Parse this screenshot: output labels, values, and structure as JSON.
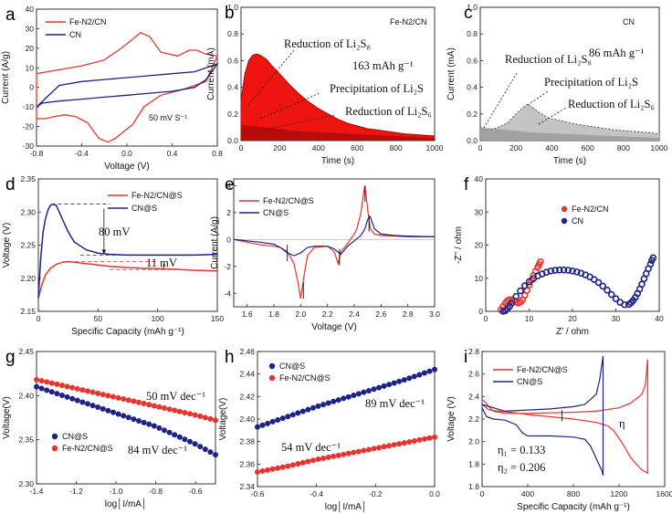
{
  "chart_data": [
    {
      "panel": "a",
      "type": "line",
      "xlabel": "Voltage (V)",
      "ylabel": "Current (A/g)",
      "xlim": [
        -0.8,
        0.8
      ],
      "ylim": [
        -30,
        40
      ],
      "xticks": [
        "-0.8",
        "-0.4",
        "0.0",
        "0.4",
        "0.8"
      ],
      "yticks": [
        "-30",
        "-20",
        "-10",
        "0",
        "10",
        "20",
        "30",
        "40"
      ],
      "series": [
        {
          "name": "Fe-N2/CN",
          "color": "#e8342e",
          "upper": [
            [
              -0.8,
              7
            ],
            [
              -0.6,
              9
            ],
            [
              -0.4,
              11
            ],
            [
              -0.2,
              14
            ],
            [
              -0.05,
              20
            ],
            [
              0.08,
              26
            ],
            [
              0.12,
              28
            ],
            [
              0.2,
              26
            ],
            [
              0.3,
              18
            ],
            [
              0.45,
              16
            ],
            [
              0.55,
              19
            ],
            [
              0.62,
              19
            ],
            [
              0.7,
              17
            ],
            [
              0.8,
              16
            ]
          ],
          "lower": [
            [
              0.8,
              16
            ],
            [
              0.7,
              3
            ],
            [
              0.5,
              -1
            ],
            [
              0.3,
              -4
            ],
            [
              0.15,
              -10
            ],
            [
              0.05,
              -19
            ],
            [
              -0.1,
              -26
            ],
            [
              -0.17,
              -28
            ],
            [
              -0.25,
              -26
            ],
            [
              -0.35,
              -18
            ],
            [
              -0.45,
              -15
            ],
            [
              -0.55,
              -14
            ],
            [
              -0.65,
              -15
            ],
            [
              -0.72,
              -16
            ],
            [
              -0.8,
              -16
            ],
            [
              -0.8,
              7
            ]
          ]
        },
        {
          "name": "CN",
          "color": "#1c2388",
          "upper": [
            [
              -0.8,
              -10
            ],
            [
              -0.6,
              1
            ],
            [
              -0.4,
              3
            ],
            [
              -0.2,
              4
            ],
            [
              0.0,
              5
            ],
            [
              0.2,
              6
            ],
            [
              0.4,
              7
            ],
            [
              0.6,
              8
            ],
            [
              0.7,
              10
            ],
            [
              0.8,
              12
            ]
          ],
          "lower": [
            [
              0.8,
              12
            ],
            [
              0.7,
              4
            ],
            [
              0.6,
              0
            ],
            [
              0.4,
              -2
            ],
            [
              0.2,
              -3
            ],
            [
              0.0,
              -4
            ],
            [
              -0.2,
              -5
            ],
            [
              -0.4,
              -6
            ],
            [
              -0.6,
              -7
            ],
            [
              -0.75,
              -8
            ],
            [
              -0.8,
              -10
            ]
          ]
        }
      ],
      "annotations": [
        "50 mV S⁻¹"
      ]
    },
    {
      "panel": "b",
      "type": "area",
      "xlabel": "Time (s)",
      "ylabel": "Current (mA)",
      "xlim": [
        0,
        1000
      ],
      "ylim": [
        0,
        1.0
      ],
      "xticks": [
        "0",
        "200",
        "400",
        "600",
        "800",
        "1000"
      ],
      "yticks": [
        "0.0",
        "0.2",
        "0.4",
        "0.6",
        "0.8",
        "1.0"
      ],
      "legend": "Fe-N2/CN",
      "series": [
        {
          "name": "Fe-N2/CN",
          "color": "#e8120c",
          "x": [
            0,
            20,
            40,
            60,
            80,
            100,
            130,
            160,
            200,
            250,
            300,
            350,
            400,
            450,
            500,
            550,
            600,
            650,
            700,
            750,
            800,
            850,
            900,
            950,
            1000
          ],
          "y": [
            0.3,
            0.5,
            0.6,
            0.64,
            0.65,
            0.64,
            0.61,
            0.56,
            0.5,
            0.42,
            0.35,
            0.29,
            0.24,
            0.2,
            0.16,
            0.13,
            0.11,
            0.09,
            0.08,
            0.07,
            0.06,
            0.05,
            0.045,
            0.04,
            0.035
          ]
        }
      ],
      "annotations": [
        "Reduction of Li₂S₈",
        "163 mAh g⁻¹",
        "Precipitation of Li₂S",
        "Reduction of Li₂S₆"
      ]
    },
    {
      "panel": "c",
      "type": "area",
      "xlabel": "Time (s)",
      "ylabel": "Current (mA)",
      "xlim": [
        0,
        1000
      ],
      "ylim": [
        0,
        1.0
      ],
      "xticks": [
        "0",
        "200",
        "400",
        "600",
        "800",
        "1000"
      ],
      "yticks": [
        "0.0",
        "0.2",
        "0.4",
        "0.6",
        "0.8",
        "1.0"
      ],
      "legend": "CN",
      "series": [
        {
          "name": "CN",
          "color": "#8c8c8c",
          "x": [
            0,
            30,
            80,
            150,
            200,
            240,
            260,
            280,
            320,
            380,
            450,
            550,
            650,
            750,
            850,
            950,
            1000
          ],
          "y": [
            0.1,
            0.08,
            0.09,
            0.13,
            0.2,
            0.25,
            0.27,
            0.26,
            0.22,
            0.17,
            0.15,
            0.12,
            0.1,
            0.08,
            0.07,
            0.06,
            0.05
          ]
        }
      ],
      "annotations": [
        "Reduction of Li₂S₈",
        "86 mAh g⁻¹",
        "Precipitation of Li₂S",
        "Reduction of Li₂S₆"
      ]
    },
    {
      "panel": "d",
      "type": "line",
      "xlabel": "Specific Capacity (mAh g⁻¹)",
      "ylabel": "Voltage (V)",
      "xlim": [
        0,
        150
      ],
      "ylim": [
        2.15,
        2.35
      ],
      "xticks": [
        "0",
        "50",
        "100",
        "150"
      ],
      "yticks": [
        "2.15",
        "2.20",
        "2.25",
        "2.30",
        "2.35"
      ],
      "series": [
        {
          "name": "Fe-N2/CN@S",
          "color": "#e8342e",
          "x": [
            0,
            3,
            6,
            10,
            15,
            20,
            25,
            30,
            40,
            50,
            60,
            75,
            90,
            110,
            130,
            150
          ],
          "y": [
            2.17,
            2.19,
            2.205,
            2.215,
            2.221,
            2.224,
            2.225,
            2.224,
            2.222,
            2.22,
            2.218,
            2.216,
            2.215,
            2.214,
            2.212,
            2.211
          ]
        },
        {
          "name": "CN@S",
          "color": "#1c2388",
          "x": [
            0,
            2,
            4,
            6,
            8,
            10,
            12,
            15,
            20,
            25,
            30,
            40,
            50,
            60,
            75,
            90,
            110,
            130,
            150
          ],
          "y": [
            2.17,
            2.23,
            2.27,
            2.29,
            2.303,
            2.31,
            2.312,
            2.31,
            2.29,
            2.27,
            2.255,
            2.243,
            2.238,
            2.236,
            2.235,
            2.235,
            2.235,
            2.235,
            2.236
          ]
        }
      ],
      "annotations": [
        "80 mV",
        "11 mV"
      ]
    },
    {
      "panel": "e",
      "type": "line",
      "xlabel": "Voltage (V)",
      "ylabel": "Current (A/g)",
      "xlim": [
        1.5,
        3.0
      ],
      "ylim": [
        -5,
        4.5
      ],
      "xticks": [
        "1.6",
        "1.8",
        "2.0",
        "2.2",
        "2.4",
        "2.6",
        "2.8",
        "3.0"
      ],
      "yticks": [
        "-4",
        "-2",
        "0",
        "2",
        "4"
      ],
      "series": [
        {
          "name": "Fe-N2/CN@S",
          "color": "#e8342e",
          "x": [
            1.5,
            1.6,
            1.7,
            1.8,
            1.85,
            1.9,
            1.95,
            1.98,
            2.0,
            2.02,
            2.05,
            2.1,
            2.2,
            2.25,
            2.28,
            2.3,
            2.35,
            2.4,
            2.42,
            2.45,
            2.47,
            2.48,
            2.5,
            2.52,
            2.55,
            2.6,
            2.7,
            2.8,
            3.0
          ],
          "y": [
            0,
            -0.2,
            -0.4,
            -0.5,
            -0.6,
            -0.9,
            -1.8,
            -3.2,
            -4.4,
            -3.0,
            -1.2,
            -0.6,
            -0.5,
            -0.9,
            -1.8,
            -0.9,
            -0.3,
            0.4,
            0.8,
            2.0,
            3.5,
            4.0,
            2.2,
            0.8,
            0.4,
            0.3,
            0.25,
            0.2,
            0.2
          ]
        },
        {
          "name": "CN@S",
          "color": "#1c2388",
          "x": [
            1.5,
            1.6,
            1.7,
            1.8,
            1.85,
            1.9,
            1.95,
            2.0,
            2.05,
            2.1,
            2.2,
            2.25,
            2.3,
            2.35,
            2.4,
            2.45,
            2.48,
            2.5,
            2.52,
            2.55,
            2.6,
            2.7,
            2.8,
            3.0
          ],
          "y": [
            0,
            -0.1,
            -0.2,
            -0.35,
            -0.6,
            -1.0,
            -1.2,
            -1.0,
            -0.6,
            -0.5,
            -0.5,
            -0.7,
            -1.1,
            -0.5,
            -0.1,
            0.3,
            0.8,
            1.5,
            1.7,
            0.8,
            0.4,
            0.3,
            0.25,
            0.2
          ]
        }
      ]
    },
    {
      "panel": "f",
      "type": "scatter",
      "xlabel": "Z' / ohm",
      "ylabel": "-Z'' / ohm",
      "xlim": [
        0,
        40
      ],
      "ylim": [
        0,
        40
      ],
      "xticks": [
        "0",
        "10",
        "20",
        "30",
        "40"
      ],
      "yticks": [
        "0",
        "10",
        "20",
        "30",
        "40"
      ],
      "series": [
        {
          "name": "Fe-N2/CN",
          "color": "#e8342e",
          "x": [
            3.5,
            4,
            4.5,
            5,
            5.5,
            6,
            6.5,
            7,
            7.5,
            8,
            8.5,
            9,
            9.5,
            10,
            10.5,
            11,
            11.5,
            12,
            12.3,
            12.6
          ],
          "y": [
            0.5,
            1.5,
            2.5,
            3.2,
            3.5,
            3.5,
            3.2,
            2.8,
            2.5,
            2.8,
            3.5,
            4.8,
            6.3,
            7.9,
            9.4,
            10.8,
            12.1,
            13.3,
            14.2,
            15.0
          ]
        },
        {
          "name": "CN",
          "color": "#1c2388",
          "x": [
            4,
            4.5,
            5,
            5.5,
            6,
            7,
            8,
            9,
            10,
            11,
            12,
            13,
            14,
            15,
            16,
            17,
            18,
            19,
            20,
            21,
            22,
            23,
            24,
            25,
            26,
            27,
            28,
            29,
            30,
            31,
            32,
            33,
            33.5,
            34,
            34.5,
            35,
            35.5,
            36,
            36.5,
            37,
            37.5,
            38,
            38.3,
            38.6
          ],
          "y": [
            0,
            0.2,
            0.8,
            1.5,
            2.5,
            4.5,
            6.2,
            7.7,
            8.9,
            9.9,
            10.7,
            11.3,
            11.8,
            12.2,
            12.4,
            12.5,
            12.5,
            12.4,
            12.2,
            11.9,
            11.5,
            11.0,
            10.4,
            9.6,
            8.7,
            7.6,
            6.4,
            5.1,
            3.8,
            2.7,
            2.0,
            2.1,
            2.6,
            3.3,
            4.2,
            5.4,
            6.7,
            8.2,
            9.8,
            11.4,
            12.9,
            14.3,
            15.4,
            16.2
          ]
        }
      ]
    },
    {
      "panel": "g",
      "type": "scatter",
      "xlabel": "log│I/mA│",
      "ylabel": "Voltage(V)",
      "xlim": [
        -1.4,
        -0.5
      ],
      "ylim": [
        2.3,
        2.45
      ],
      "xticks": [
        "-1.4",
        "-1.2",
        "-1.0",
        "-0.8",
        "-0.6"
      ],
      "yticks": [
        "2.30",
        "2.35",
        "2.40",
        "2.45"
      ],
      "series": [
        {
          "name": "CN@S",
          "color": "#1c2388",
          "x": [
            -1.4,
            -1.2,
            -1.0,
            -0.8,
            -0.6,
            -0.5
          ],
          "y": [
            2.41,
            2.395,
            2.38,
            2.365,
            2.345,
            2.333
          ]
        },
        {
          "name": "Fe-N2/CN@S",
          "color": "#e8342e",
          "x": [
            -1.4,
            -1.2,
            -1.0,
            -0.8,
            -0.6,
            -0.5
          ],
          "y": [
            2.418,
            2.408,
            2.398,
            2.388,
            2.378,
            2.372
          ]
        }
      ],
      "annotations": [
        "50 mV dec⁻¹",
        "84 mV dec⁻¹"
      ]
    },
    {
      "panel": "h",
      "type": "scatter",
      "xlabel": "log│I/mA│",
      "ylabel": "Voltage(V)",
      "xlim": [
        -0.6,
        0.0
      ],
      "ylim": [
        2.34,
        2.46
      ],
      "xticks": [
        "-0.6",
        "-0.4",
        "-0.2",
        "0.0"
      ],
      "yticks": [
        "2.34",
        "2.36",
        "2.38",
        "2.40",
        "2.42",
        "2.44",
        "2.46"
      ],
      "series": [
        {
          "name": "CN@S",
          "color": "#1c2388",
          "x": [
            -0.6,
            -0.5,
            -0.4,
            -0.3,
            -0.2,
            -0.1,
            0.0
          ],
          "y": [
            2.393,
            2.402,
            2.411,
            2.419,
            2.427,
            2.435,
            2.444
          ]
        },
        {
          "name": "Fe-N2/CN@S",
          "color": "#e8342e",
          "x": [
            -0.6,
            -0.5,
            -0.4,
            -0.3,
            -0.2,
            -0.1,
            0.0
          ],
          "y": [
            2.353,
            2.358,
            2.364,
            2.369,
            2.374,
            2.379,
            2.384
          ]
        }
      ],
      "annotations": [
        "89 mV dec⁻¹",
        "54 mV dec⁻¹"
      ]
    },
    {
      "panel": "i",
      "type": "line",
      "xlabel": "Specific Capacity (mAh g⁻¹)",
      "ylabel": "Voltage (V)",
      "xlim": [
        0,
        1600
      ],
      "ylim": [
        1.6,
        2.8
      ],
      "xticks": [
        "0",
        "400",
        "800",
        "1200",
        "1600"
      ],
      "yticks": [
        "1.6",
        "1.8",
        "2.0",
        "2.2",
        "2.4",
        "2.6",
        "2.8"
      ],
      "series": [
        {
          "name": "Fe-N2/CN@S",
          "color": "#e8342e",
          "x": [
            0,
            60,
            150,
            250,
            400,
            600,
            800,
            1000,
            1100,
            1150,
            1200,
            1250,
            1300,
            1350,
            1400,
            1450,
            1450,
            1430,
            1400,
            1300,
            1200,
            1000,
            800,
            600,
            400,
            200,
            100,
            50,
            20,
            0
          ],
          "y": [
            2.33,
            2.28,
            2.27,
            2.26,
            2.24,
            2.22,
            2.2,
            2.17,
            2.14,
            2.1,
            2.03,
            1.95,
            1.86,
            1.8,
            1.75,
            1.72,
            2.73,
            2.5,
            2.42,
            2.34,
            2.3,
            2.27,
            2.26,
            2.255,
            2.25,
            2.25,
            2.27,
            2.32,
            2.36,
            2.37
          ]
        },
        {
          "name": "CN@S",
          "color": "#1c2388",
          "x": [
            0,
            40,
            100,
            200,
            300,
            350,
            400,
            600,
            800,
            900,
            950,
            1000,
            1050,
            1060,
            1060,
            1030,
            1000,
            900,
            800,
            600,
            400,
            200,
            100,
            0
          ],
          "y": [
            2.3,
            2.22,
            2.2,
            2.19,
            2.15,
            2.08,
            2.05,
            2.05,
            2.04,
            2.02,
            1.96,
            1.85,
            1.74,
            1.7,
            2.76,
            2.55,
            2.42,
            2.33,
            2.31,
            2.29,
            2.28,
            2.27,
            2.3,
            2.33
          ]
        }
      ],
      "annotations": [
        "η₁ = 0.133",
        "η₂ = 0.206",
        "η"
      ]
    }
  ]
}
